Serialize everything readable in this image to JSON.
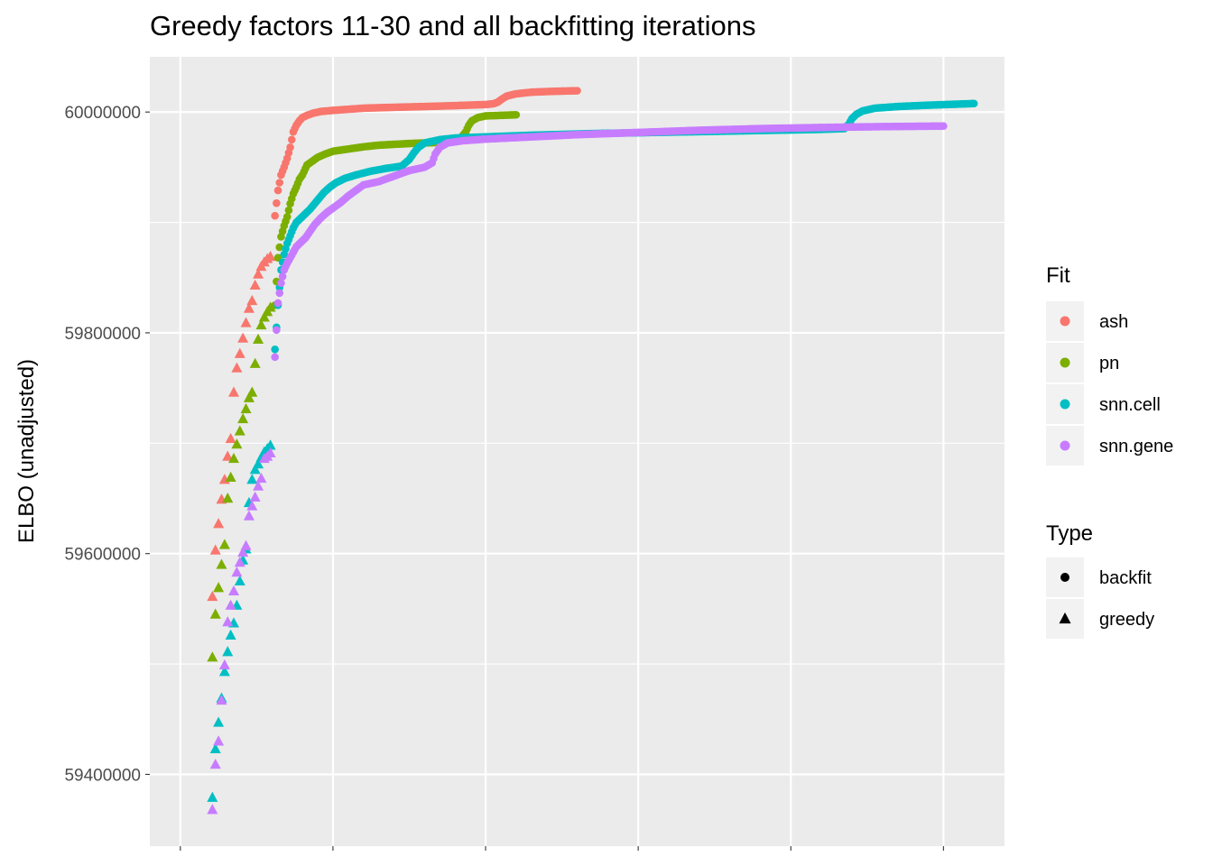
{
  "chart_data": {
    "type": "scatter",
    "title": "Greedy factors 11-30 and all backfitting iterations",
    "xlabel": "",
    "ylabel": "ELBO (unadjusted)",
    "y_ticks": [
      59400000,
      59600000,
      59800000,
      60000000
    ],
    "y_tick_labels": [
      "59400000",
      "59600000",
      "59800000",
      "60000000"
    ],
    "ylim": [
      59335000,
      60050000
    ],
    "xlim": [
      -0.2,
      5.4
    ],
    "x_gridlines": [
      0,
      1,
      2,
      3,
      4,
      5
    ],
    "grid": true,
    "legend_position": "right",
    "legends": {
      "fit": {
        "title": "Fit",
        "entries": [
          {
            "name": "ash",
            "color": "#F8766D"
          },
          {
            "name": "pn",
            "color": "#7CAE00"
          },
          {
            "name": "snn.cell",
            "color": "#00BFC4"
          },
          {
            "name": "snn.gene",
            "color": "#C77CFF"
          }
        ]
      },
      "type": {
        "title": "Type",
        "entries": [
          {
            "name": "backfit",
            "shape": "circle"
          },
          {
            "name": "greedy",
            "shape": "triangle"
          }
        ]
      }
    },
    "series": [
      {
        "fit": "ash",
        "color": "#F8766D",
        "greedy": [
          [
            0.21,
            59561000
          ],
          [
            0.23,
            59603000
          ],
          [
            0.25,
            59627000
          ],
          [
            0.27,
            59649000
          ],
          [
            0.29,
            59667000
          ],
          [
            0.31,
            59688000
          ],
          [
            0.33,
            59704000
          ],
          [
            0.35,
            59746000
          ],
          [
            0.37,
            59768000
          ],
          [
            0.39,
            59781000
          ],
          [
            0.41,
            59795000
          ],
          [
            0.43,
            59809000
          ],
          [
            0.45,
            59822000
          ],
          [
            0.47,
            59829000
          ],
          [
            0.49,
            59843000
          ],
          [
            0.51,
            59853000
          ],
          [
            0.53,
            59860000
          ],
          [
            0.55,
            59864000
          ],
          [
            0.57,
            59867000
          ],
          [
            0.59,
            59869000
          ]
        ],
        "backfit": [
          [
            0.62,
            59906000
          ],
          [
            0.64,
            59929000
          ],
          [
            0.66,
            59943000
          ],
          [
            0.68,
            59950000
          ],
          [
            0.7,
            59958000
          ],
          [
            0.72,
            59968000
          ],
          [
            0.74,
            59982000
          ],
          [
            0.76,
            59988000
          ],
          [
            0.78,
            59992000
          ],
          [
            0.8,
            59995000
          ],
          [
            0.83,
            59997000
          ],
          [
            0.87,
            59999000
          ],
          [
            0.92,
            60000500
          ],
          [
            1.0,
            60001500
          ],
          [
            1.1,
            60002500
          ],
          [
            1.2,
            60003500
          ],
          [
            1.4,
            60004300
          ],
          [
            1.6,
            60005000
          ],
          [
            1.8,
            60005800
          ],
          [
            2.0,
            60006800
          ],
          [
            2.05,
            60007500
          ],
          [
            2.08,
            60009000
          ],
          [
            2.11,
            60012000
          ],
          [
            2.14,
            60014500
          ],
          [
            2.2,
            60016500
          ],
          [
            2.3,
            60018000
          ],
          [
            2.45,
            60018800
          ],
          [
            2.6,
            60019300
          ]
        ]
      },
      {
        "fit": "pn",
        "color": "#7CAE00",
        "greedy": [
          [
            0.21,
            59506000
          ],
          [
            0.23,
            59545000
          ],
          [
            0.25,
            59569000
          ],
          [
            0.27,
            59590000
          ],
          [
            0.29,
            59608000
          ],
          [
            0.31,
            59650000
          ],
          [
            0.33,
            59669000
          ],
          [
            0.35,
            59686000
          ],
          [
            0.37,
            59699000
          ],
          [
            0.39,
            59711000
          ],
          [
            0.41,
            59722000
          ],
          [
            0.43,
            59731000
          ],
          [
            0.45,
            59741000
          ],
          [
            0.47,
            59746000
          ],
          [
            0.49,
            59772000
          ],
          [
            0.51,
            59794000
          ],
          [
            0.53,
            59807000
          ],
          [
            0.55,
            59814000
          ],
          [
            0.57,
            59819000
          ],
          [
            0.59,
            59823000
          ]
        ],
        "backfit": [
          [
            0.62,
            59825000
          ],
          [
            0.64,
            59868000
          ],
          [
            0.66,
            59887000
          ],
          [
            0.68,
            59897000
          ],
          [
            0.7,
            59905000
          ],
          [
            0.72,
            59917000
          ],
          [
            0.74,
            59926000
          ],
          [
            0.76,
            59932000
          ],
          [
            0.78,
            59939000
          ],
          [
            0.8,
            59943000
          ],
          [
            0.83,
            59952000
          ],
          [
            0.86,
            59955000
          ],
          [
            0.9,
            59959000
          ],
          [
            0.95,
            59962000
          ],
          [
            1.0,
            59964500
          ],
          [
            1.1,
            59966500
          ],
          [
            1.2,
            59968500
          ],
          [
            1.3,
            59970000
          ],
          [
            1.5,
            59971500
          ],
          [
            1.7,
            59972500
          ],
          [
            1.8,
            59974000
          ],
          [
            1.84,
            59977000
          ],
          [
            1.87,
            59982000
          ],
          [
            1.89,
            59988000
          ],
          [
            1.91,
            59992000
          ],
          [
            1.95,
            59995000
          ],
          [
            2.0,
            59996500
          ],
          [
            2.1,
            59997000
          ],
          [
            2.2,
            59997500
          ]
        ]
      },
      {
        "fit": "snn.cell",
        "color": "#00BFC4",
        "greedy": [
          [
            0.21,
            59379000
          ],
          [
            0.23,
            59423000
          ],
          [
            0.25,
            59447000
          ],
          [
            0.27,
            59469000
          ],
          [
            0.29,
            59493000
          ],
          [
            0.31,
            59511000
          ],
          [
            0.33,
            59526000
          ],
          [
            0.35,
            59537000
          ],
          [
            0.37,
            59553000
          ],
          [
            0.39,
            59575000
          ],
          [
            0.41,
            59594000
          ],
          [
            0.43,
            59604000
          ],
          [
            0.45,
            59646000
          ],
          [
            0.47,
            59667000
          ],
          [
            0.49,
            59676000
          ],
          [
            0.51,
            59681000
          ],
          [
            0.53,
            59687000
          ],
          [
            0.55,
            59692000
          ],
          [
            0.57,
            59695000
          ],
          [
            0.59,
            59698000
          ]
        ],
        "backfit": [
          [
            0.62,
            59785000
          ],
          [
            0.64,
            59825000
          ],
          [
            0.66,
            59857000
          ],
          [
            0.68,
            59871000
          ],
          [
            0.7,
            59881000
          ],
          [
            0.72,
            59888000
          ],
          [
            0.74,
            59895000
          ],
          [
            0.76,
            59900000
          ],
          [
            0.79,
            59904000
          ],
          [
            0.82,
            59908000
          ],
          [
            0.85,
            59912000
          ],
          [
            0.88,
            59917000
          ],
          [
            0.91,
            59922000
          ],
          [
            0.94,
            59927000
          ],
          [
            0.98,
            59932000
          ],
          [
            1.02,
            59936000
          ],
          [
            1.08,
            59940000
          ],
          [
            1.15,
            59943000
          ],
          [
            1.25,
            59946500
          ],
          [
            1.35,
            59949000
          ],
          [
            1.45,
            59951000
          ],
          [
            1.5,
            59957000
          ],
          [
            1.53,
            59963000
          ],
          [
            1.56,
            59968000
          ],
          [
            1.6,
            59972000
          ],
          [
            1.7,
            59975000
          ],
          [
            1.8,
            59976500
          ],
          [
            2.0,
            59977500
          ],
          [
            2.3,
            59979000
          ],
          [
            2.7,
            59980500
          ],
          [
            3.1,
            59981500
          ],
          [
            3.5,
            59982500
          ],
          [
            3.9,
            59983500
          ],
          [
            4.2,
            59984300
          ],
          [
            4.35,
            59985000
          ],
          [
            4.38,
            59989000
          ],
          [
            4.4,
            59994000
          ],
          [
            4.43,
            59998000
          ],
          [
            4.47,
            60001000
          ],
          [
            4.55,
            60003500
          ],
          [
            4.7,
            60005000
          ],
          [
            4.9,
            60006200
          ],
          [
            5.1,
            60007200
          ],
          [
            5.2,
            60007700
          ]
        ]
      },
      {
        "fit": "snn.gene",
        "color": "#C77CFF",
        "greedy": [
          [
            0.21,
            59368000
          ],
          [
            0.23,
            59409000
          ],
          [
            0.25,
            59430000
          ],
          [
            0.27,
            59467000
          ],
          [
            0.29,
            59499000
          ],
          [
            0.31,
            59538000
          ],
          [
            0.33,
            59553000
          ],
          [
            0.35,
            59566000
          ],
          [
            0.37,
            59583000
          ],
          [
            0.39,
            59592000
          ],
          [
            0.41,
            59601000
          ],
          [
            0.43,
            59607000
          ],
          [
            0.45,
            59634000
          ],
          [
            0.47,
            59643000
          ],
          [
            0.49,
            59651000
          ],
          [
            0.51,
            59661000
          ],
          [
            0.53,
            59668000
          ],
          [
            0.55,
            59686000
          ],
          [
            0.57,
            59688000
          ],
          [
            0.59,
            59691000
          ]
        ],
        "backfit": [
          [
            0.62,
            59778000
          ],
          [
            0.64,
            59827000
          ],
          [
            0.66,
            59845000
          ],
          [
            0.68,
            59857000
          ],
          [
            0.7,
            59863000
          ],
          [
            0.72,
            59868000
          ],
          [
            0.74,
            59873000
          ],
          [
            0.76,
            59878000
          ],
          [
            0.79,
            59882000
          ],
          [
            0.82,
            59886000
          ],
          [
            0.85,
            59892000
          ],
          [
            0.88,
            59898000
          ],
          [
            0.92,
            59904000
          ],
          [
            0.96,
            59909000
          ],
          [
            1.0,
            59913000
          ],
          [
            1.05,
            59918000
          ],
          [
            1.1,
            59924000
          ],
          [
            1.15,
            59929000
          ],
          [
            1.2,
            59934000
          ],
          [
            1.3,
            59937000
          ],
          [
            1.4,
            59942000
          ],
          [
            1.5,
            59947000
          ],
          [
            1.6,
            59950000
          ],
          [
            1.65,
            59954000
          ],
          [
            1.67,
            59962000
          ],
          [
            1.7,
            59968000
          ],
          [
            1.75,
            59972000
          ],
          [
            1.85,
            59974000
          ],
          [
            2.0,
            59975500
          ],
          [
            2.3,
            59977500
          ],
          [
            2.6,
            59979500
          ],
          [
            3.0,
            59981500
          ],
          [
            3.4,
            59983500
          ],
          [
            3.8,
            59985000
          ],
          [
            4.2,
            59986000
          ],
          [
            4.6,
            59986800
          ],
          [
            5.0,
            59987300
          ]
        ]
      }
    ]
  }
}
